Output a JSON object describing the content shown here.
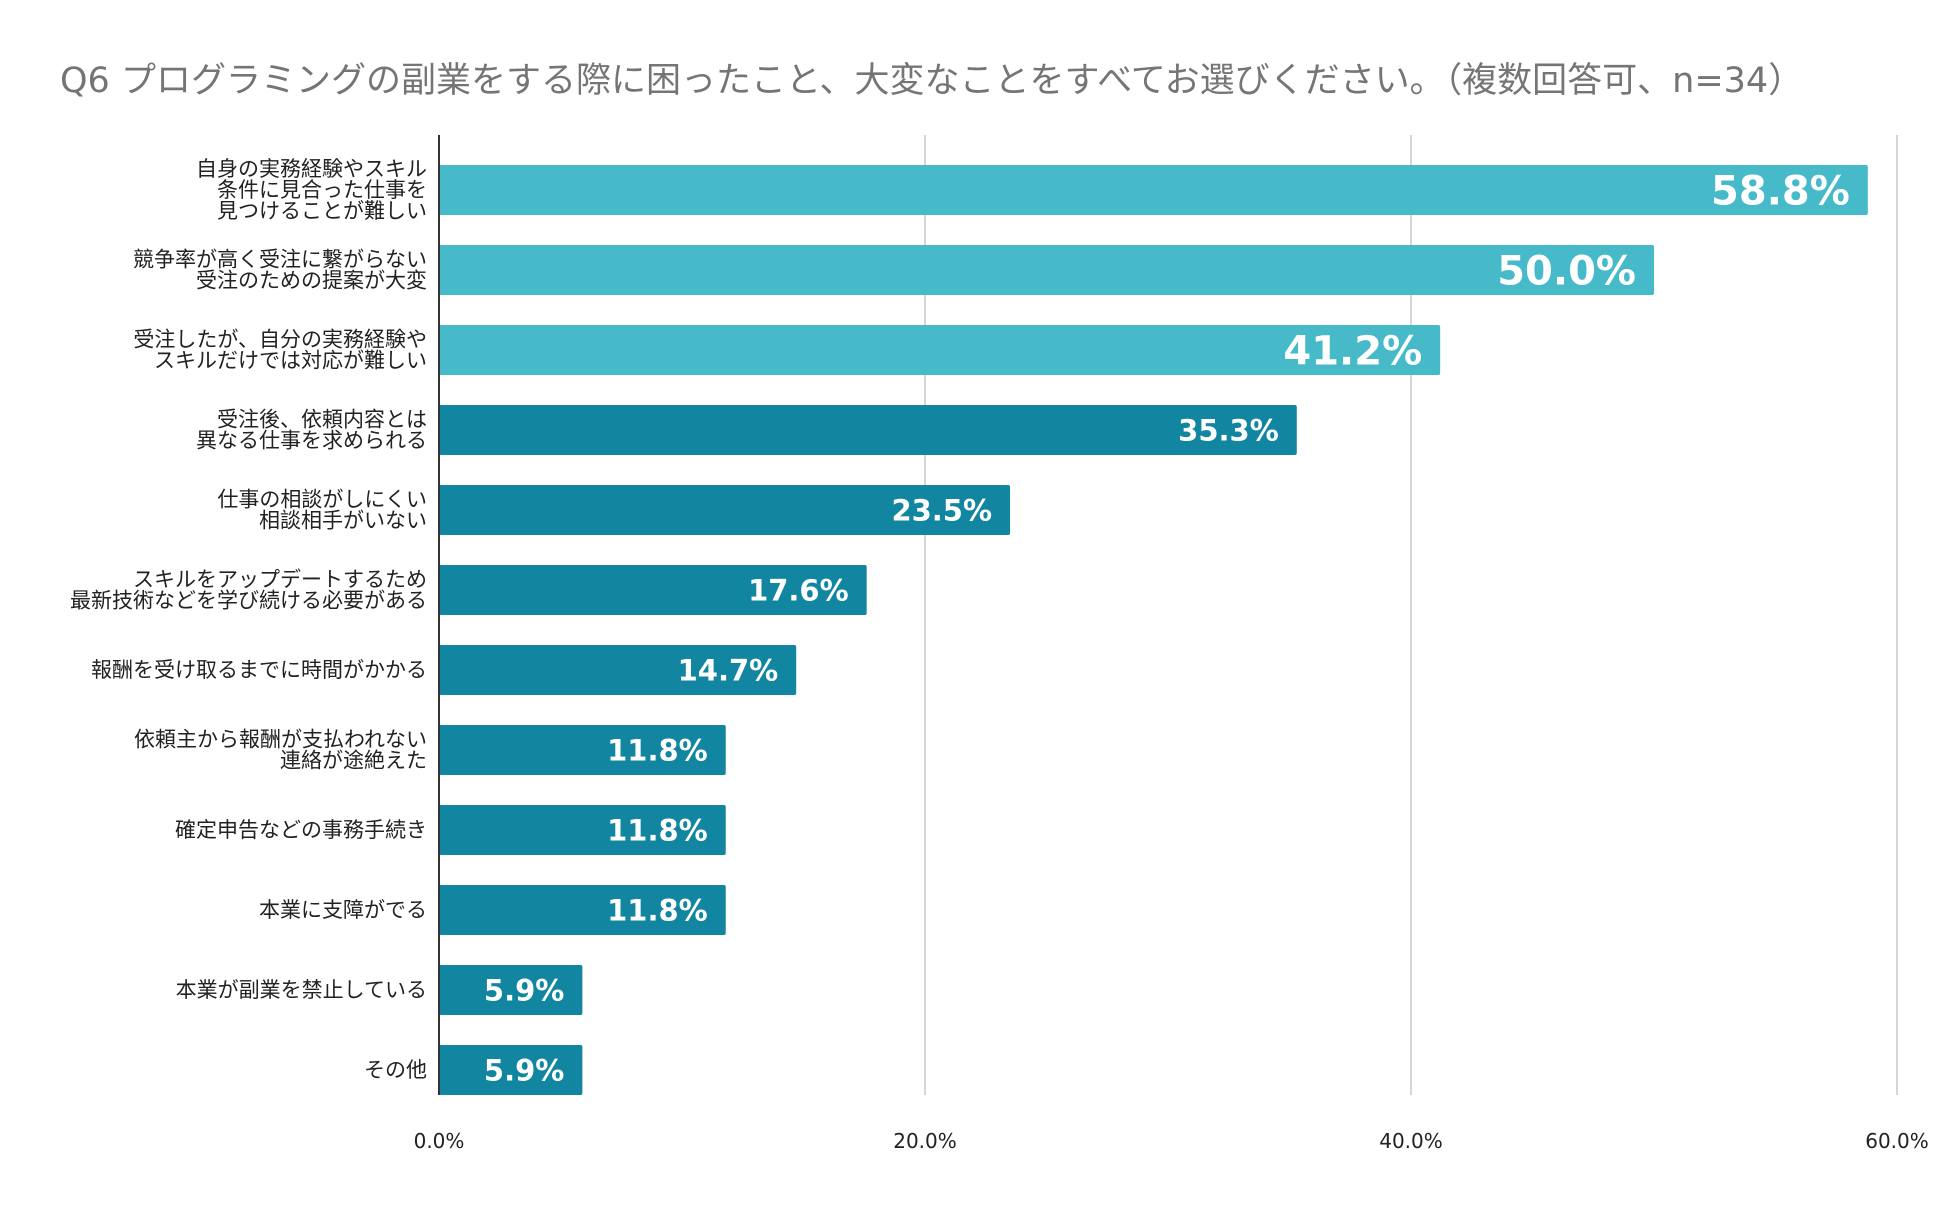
{
  "chart_data": {
    "type": "bar",
    "orientation": "horizontal",
    "title": "Q6 プログラミングの副業をする際に困ったこと、大変なことをすべてお選びください。（複数回答可、n=34）",
    "xlabel": "",
    "ylabel": "",
    "xlim": [
      0,
      60
    ],
    "x_ticks": [
      "0.0%",
      "20.0%",
      "40.0%",
      "60.0%"
    ],
    "x_tick_values": [
      0,
      20,
      40,
      60
    ],
    "grid": true,
    "value_format": "%",
    "categories": [
      [
        "自身の実務経験やスキル",
        "条件に見合った仕事を",
        "見つけることが難しい"
      ],
      [
        "競争率が高く受注に繋がらない",
        "受注のための提案が大変"
      ],
      [
        "受注したが、自分の実務経験や",
        "スキルだけでは対応が難しい"
      ],
      [
        "受注後、依頼内容とは",
        "異なる仕事を求められる"
      ],
      [
        "仕事の相談がしにくい",
        "相談相手がいない"
      ],
      [
        "スキルをアップデートするため",
        "最新技術などを学び続ける必要がある"
      ],
      [
        "報酬を受け取るまでに時間がかかる"
      ],
      [
        "依頼主から報酬が支払われない",
        "連絡が途絶えた"
      ],
      [
        "確定申告などの事務手続き"
      ],
      [
        "本業に支障がでる"
      ],
      [
        "本業が副業を禁止している"
      ],
      [
        "その他"
      ]
    ],
    "values": [
      58.8,
      50.0,
      41.2,
      35.3,
      23.5,
      17.6,
      14.7,
      11.8,
      11.8,
      11.8,
      5.9,
      5.9
    ],
    "value_labels": [
      "58.8%",
      "50.0%",
      "41.2%",
      "35.3%",
      "23.5%",
      "17.6%",
      "14.7%",
      "11.8%",
      "11.8%",
      "11.8%",
      "5.9%",
      "5.9%"
    ],
    "highlight_count": 3,
    "colors": {
      "highlight": "#46BAC8",
      "normal": "#1286A0",
      "grid": "#D6D6D6",
      "axis": "#333333",
      "title": "#757575"
    }
  }
}
